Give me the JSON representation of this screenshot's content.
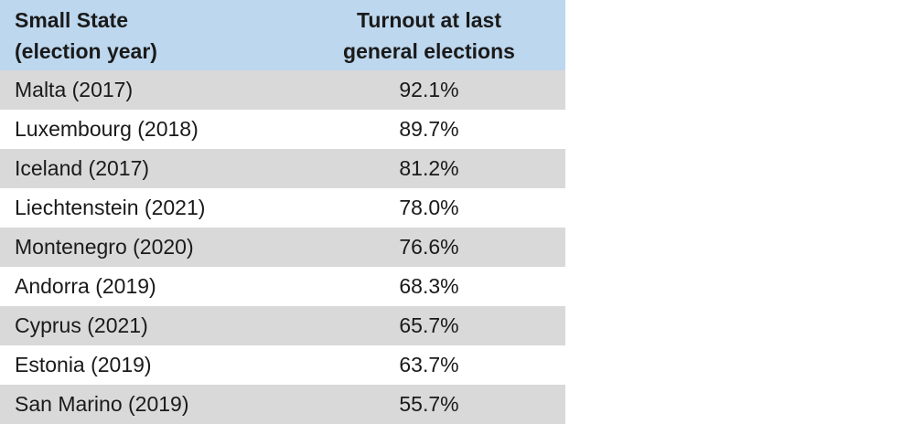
{
  "table": {
    "header": {
      "state_line1": "Small State",
      "state_line2": "(election year)",
      "turnout_line1": "Turnout at last",
      "turnout_line2": "general elections"
    },
    "rows": [
      {
        "state": "Malta (2017)",
        "turnout": "92.1%"
      },
      {
        "state": "Luxembourg (2018)",
        "turnout": "89.7%"
      },
      {
        "state": "Iceland (2017)",
        "turnout": "81.2%"
      },
      {
        "state": "Liechtenstein (2021)",
        "turnout": "78.0%"
      },
      {
        "state": "Montenegro (2020)",
        "turnout": "76.6%"
      },
      {
        "state": "Andorra (2019)",
        "turnout": "68.3%"
      },
      {
        "state": "Cyprus (2021)",
        "turnout": "65.7%"
      },
      {
        "state": "Estonia (2019)",
        "turnout": "63.7%"
      },
      {
        "state": "San Marino (2019)",
        "turnout": "55.7%"
      }
    ]
  },
  "colors": {
    "header_bg": "#BDD7EE",
    "row_shaded_bg": "#D9D9D9",
    "row_plain_bg": "#FFFFFF",
    "text": "#1A1A1A",
    "table_bottom_edge": "#C2C2C2"
  },
  "chart_data": {
    "type": "table",
    "columns": [
      "Small State (election year)",
      "Turnout at last general elections"
    ],
    "rows": [
      [
        "Malta (2017)",
        "92.1%"
      ],
      [
        "Luxembourg (2018)",
        "89.7%"
      ],
      [
        "Iceland (2017)",
        "81.2%"
      ],
      [
        "Liechtenstein (2021)",
        "78.0%"
      ],
      [
        "Montenegro (2020)",
        "76.6%"
      ],
      [
        "Andorra (2019)",
        "68.3%"
      ],
      [
        "Cyprus (2021)",
        "65.7%"
      ],
      [
        "Estonia (2019)",
        "63.7%"
      ],
      [
        "San Marino (2019)",
        "55.7%"
      ]
    ],
    "states": [
      "Malta",
      "Luxembourg",
      "Iceland",
      "Liechtenstein",
      "Montenegro",
      "Andorra",
      "Cyprus",
      "Estonia",
      "San Marino"
    ],
    "election_years": [
      2017,
      2018,
      2017,
      2021,
      2020,
      2019,
      2021,
      2019,
      2019
    ],
    "turnout_percent": [
      92.1,
      89.7,
      81.2,
      78.0,
      76.6,
      68.3,
      65.7,
      63.7,
      55.7
    ],
    "layout_hints": {
      "header_background": "#BDD7EE",
      "alternating_row_background": "#D9D9D9",
      "first_column_align": "left",
      "second_column_align": "center"
    }
  }
}
